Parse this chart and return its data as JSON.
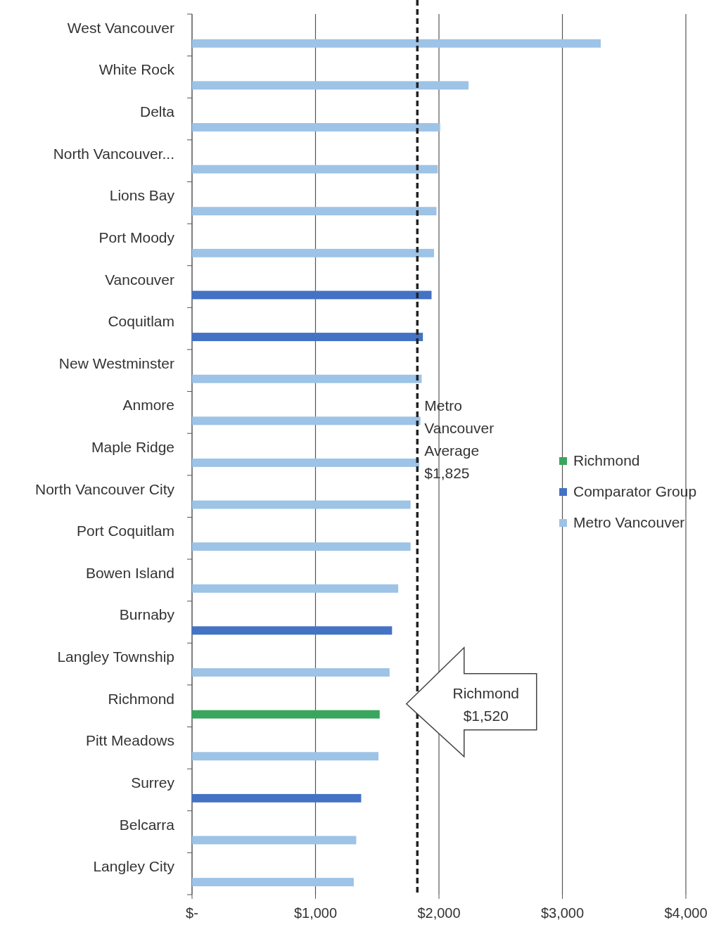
{
  "chart_data": {
    "type": "bar",
    "orientation": "horizontal",
    "categories": [
      "West Vancouver",
      "White Rock",
      "Delta",
      "North Vancouver...",
      "Lions Bay",
      "Port Moody",
      "Vancouver",
      "Coquitlam",
      "New Westminster",
      "Anmore",
      "Maple Ridge",
      "North Vancouver City",
      "Port Coquitlam",
      "Bowen Island",
      "Burnaby",
      "Langley Township",
      "Richmond",
      "Pitt Meadows",
      "Surrey",
      "Belcarra",
      "Langley City"
    ],
    "series": [
      {
        "name": "Richmond",
        "color": "#3aa55c",
        "values": [
          null,
          null,
          null,
          null,
          null,
          null,
          null,
          null,
          null,
          null,
          null,
          null,
          null,
          null,
          null,
          null,
          1520,
          null,
          null,
          null,
          null
        ]
      },
      {
        "name": "Comparator Group",
        "color": "#4472c4",
        "values": [
          null,
          null,
          null,
          null,
          null,
          null,
          1940,
          1870,
          null,
          null,
          null,
          null,
          null,
          null,
          1620,
          null,
          null,
          null,
          1370,
          null,
          null
        ]
      },
      {
        "name": "Metro Vancouver",
        "color": "#9dc3e6",
        "values": [
          3310,
          2240,
          2010,
          1990,
          1980,
          1960,
          null,
          null,
          1860,
          1850,
          1840,
          1770,
          1770,
          1670,
          null,
          1600,
          null,
          1510,
          null,
          1330,
          1310
        ]
      }
    ],
    "xlim": [
      0,
      4000
    ],
    "xticks": [
      {
        "value": 0,
        "label": "$-"
      },
      {
        "value": 1000,
        "label": "$1,000"
      },
      {
        "value": 2000,
        "label": "$2,000"
      },
      {
        "value": 3000,
        "label": "$3,000"
      },
      {
        "value": 4000,
        "label": "$4,000"
      }
    ],
    "grid": "x",
    "legend": "right",
    "ref_lines": [
      {
        "axis": "x",
        "value": 1825,
        "label": "Metro Vancouver Average $1,825",
        "color": "#222222",
        "line_style": "dashed"
      }
    ],
    "annotations": [
      "Richmond $1,520"
    ]
  }
}
